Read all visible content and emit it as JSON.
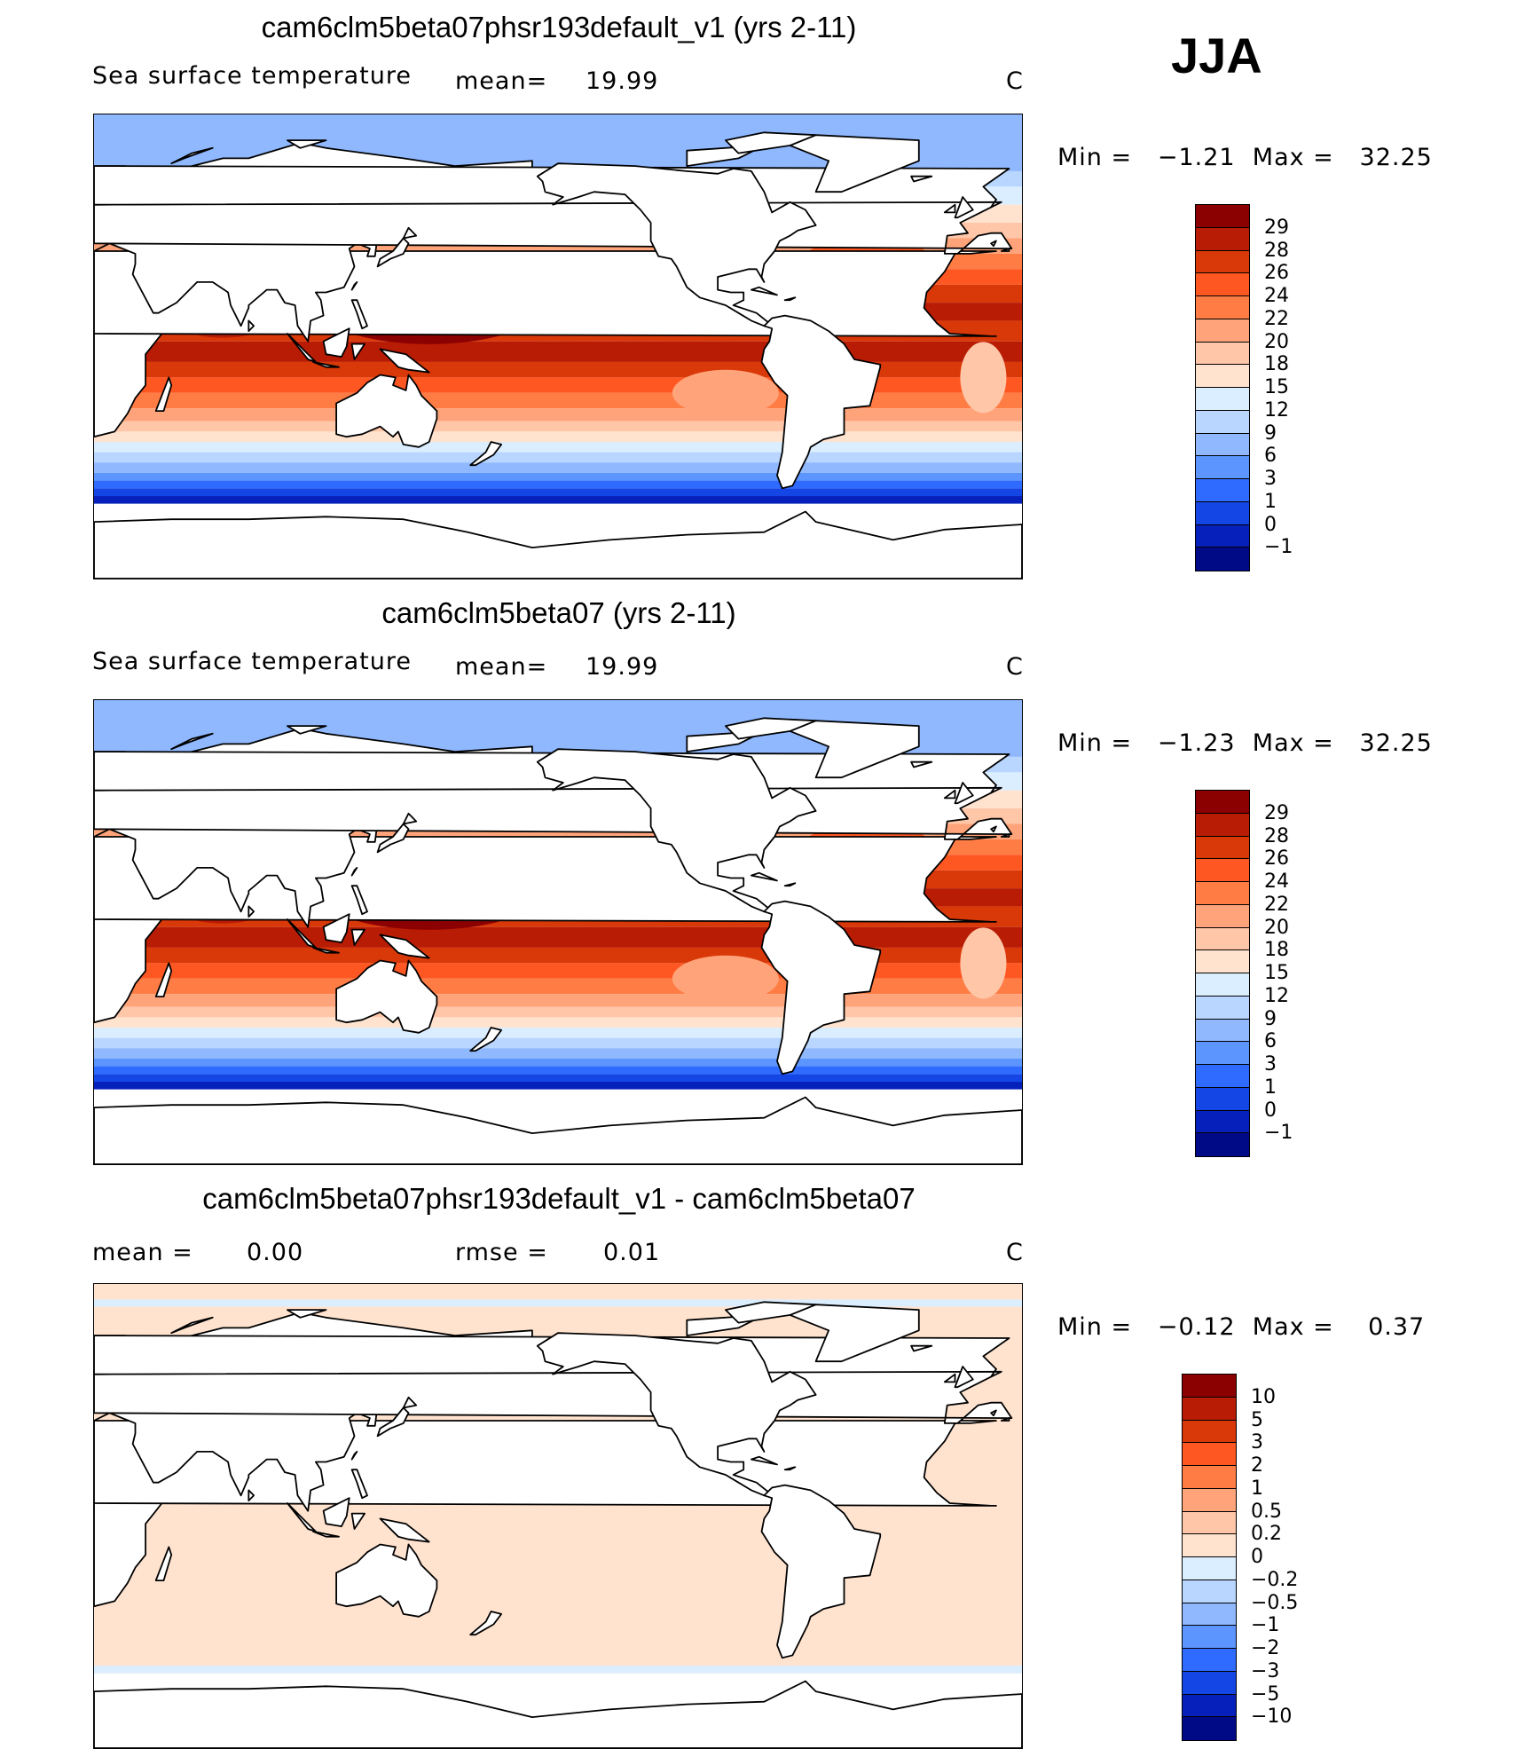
{
  "season": "JJA",
  "panels": [
    {
      "title": "cam6clm5beta07phsr193default_v1 (yrs 2-11)",
      "variable": "Sea surface temperature",
      "stat1_label": "mean=",
      "stat1_value": "19.99",
      "stat2_label": "",
      "stat2_value": "",
      "units": "C",
      "minmax": "Min =   −1.21  Max =   32.25",
      "colorbar_ticks": [
        "29",
        "28",
        "26",
        "24",
        "22",
        "20",
        "18",
        "15",
        "12",
        "9",
        "6",
        "3",
        "1",
        "0",
        "−1"
      ],
      "colorbar_colors": [
        "#8b0000",
        "#b81c05",
        "#d93809",
        "#ff5722",
        "#ff7d45",
        "#ffa47a",
        "#ffc6a8",
        "#ffe3cf",
        "#dbeeff",
        "#b8d6ff",
        "#8fb8ff",
        "#5d95ff",
        "#2f6bff",
        "#1446e6",
        "#0620bb",
        "#000a87"
      ],
      "map_type": "absolute"
    },
    {
      "title": "cam6clm5beta07 (yrs 2-11)",
      "variable": "Sea surface temperature",
      "stat1_label": "mean=",
      "stat1_value": "19.99",
      "stat2_label": "",
      "stat2_value": "",
      "units": "C",
      "minmax": "Min =   −1.23  Max =   32.25",
      "colorbar_ticks": [
        "29",
        "28",
        "26",
        "24",
        "22",
        "20",
        "18",
        "15",
        "12",
        "9",
        "6",
        "3",
        "1",
        "0",
        "−1"
      ],
      "colorbar_colors": [
        "#8b0000",
        "#b81c05",
        "#d93809",
        "#ff5722",
        "#ff7d45",
        "#ffa47a",
        "#ffc6a8",
        "#ffe3cf",
        "#dbeeff",
        "#b8d6ff",
        "#8fb8ff",
        "#5d95ff",
        "#2f6bff",
        "#1446e6",
        "#0620bb",
        "#000a87"
      ],
      "map_type": "absolute"
    },
    {
      "title": "cam6clm5beta07phsr193default_v1 - cam6clm5beta07",
      "variable": "",
      "stat1_label": "mean =",
      "stat1_value": "0.00",
      "stat2_label": "rmse =",
      "stat2_value": "0.01",
      "units": "C",
      "minmax": "Min =   −0.12  Max =    0.37",
      "colorbar_ticks": [
        "10",
        "5",
        "3",
        "2",
        "1",
        "0.5",
        "0.2",
        "0",
        "−0.2",
        "−0.5",
        "−1",
        "−2",
        "−3",
        "−5",
        "−10"
      ],
      "colorbar_colors": [
        "#8b0000",
        "#b81c05",
        "#d93809",
        "#ff5722",
        "#ff7d45",
        "#ffa47a",
        "#ffc6a8",
        "#ffe3cf",
        "#dbeeff",
        "#b8d6ff",
        "#8fb8ff",
        "#5d95ff",
        "#2f6bff",
        "#1446e6",
        "#0620bb",
        "#000a87"
      ],
      "map_type": "difference"
    }
  ]
}
